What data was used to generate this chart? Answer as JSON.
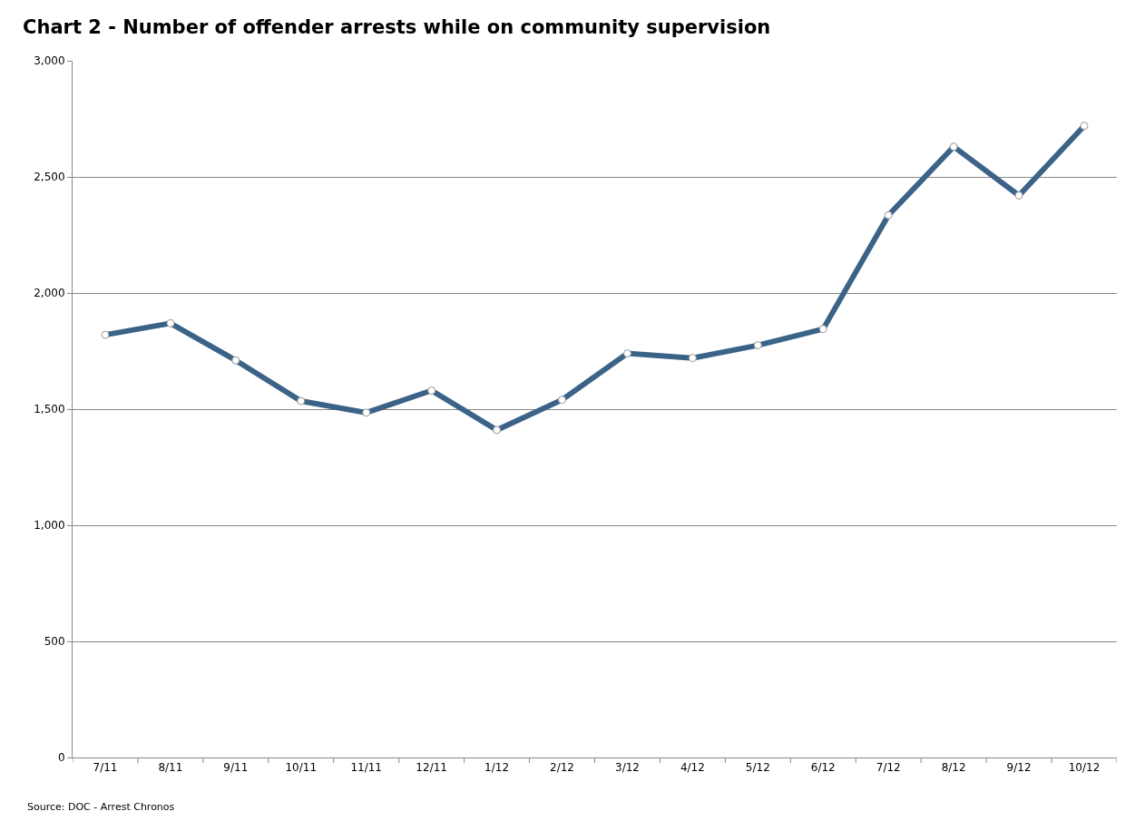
{
  "chart_data": {
    "type": "line",
    "title": "Chart 2 - Number of offender arrests while on community supervision",
    "categories": [
      "7/11",
      "8/11",
      "9/11",
      "10/11",
      "11/11",
      "12/11",
      "1/12",
      "2/12",
      "3/12",
      "4/12",
      "5/12",
      "6/12",
      "7/12",
      "8/12",
      "9/12",
      "10/12"
    ],
    "series": [
      {
        "color": "#3b6388",
        "values": [
          1820,
          1870,
          1710,
          1535,
          1485,
          1580,
          1410,
          1540,
          1740,
          1720,
          1775,
          1845,
          2335,
          2630,
          2420,
          2720
        ]
      }
    ],
    "ylim": [
      0,
      3000
    ],
    "yticks": [
      {
        "value": 0,
        "label": "0"
      },
      {
        "value": 500,
        "label": "500"
      },
      {
        "value": 1000,
        "label": "1,000"
      },
      {
        "value": 1500,
        "label": "1,500"
      },
      {
        "value": 2000,
        "label": "2,000"
      },
      {
        "value": 2500,
        "label": "2,500"
      },
      {
        "value": 3000,
        "label": "3,000"
      }
    ],
    "grid": "y",
    "legend": false,
    "marker": "circle",
    "line_style": "solid",
    "annotations": [
      "Source: DOC - Arrest Chronos"
    ]
  }
}
